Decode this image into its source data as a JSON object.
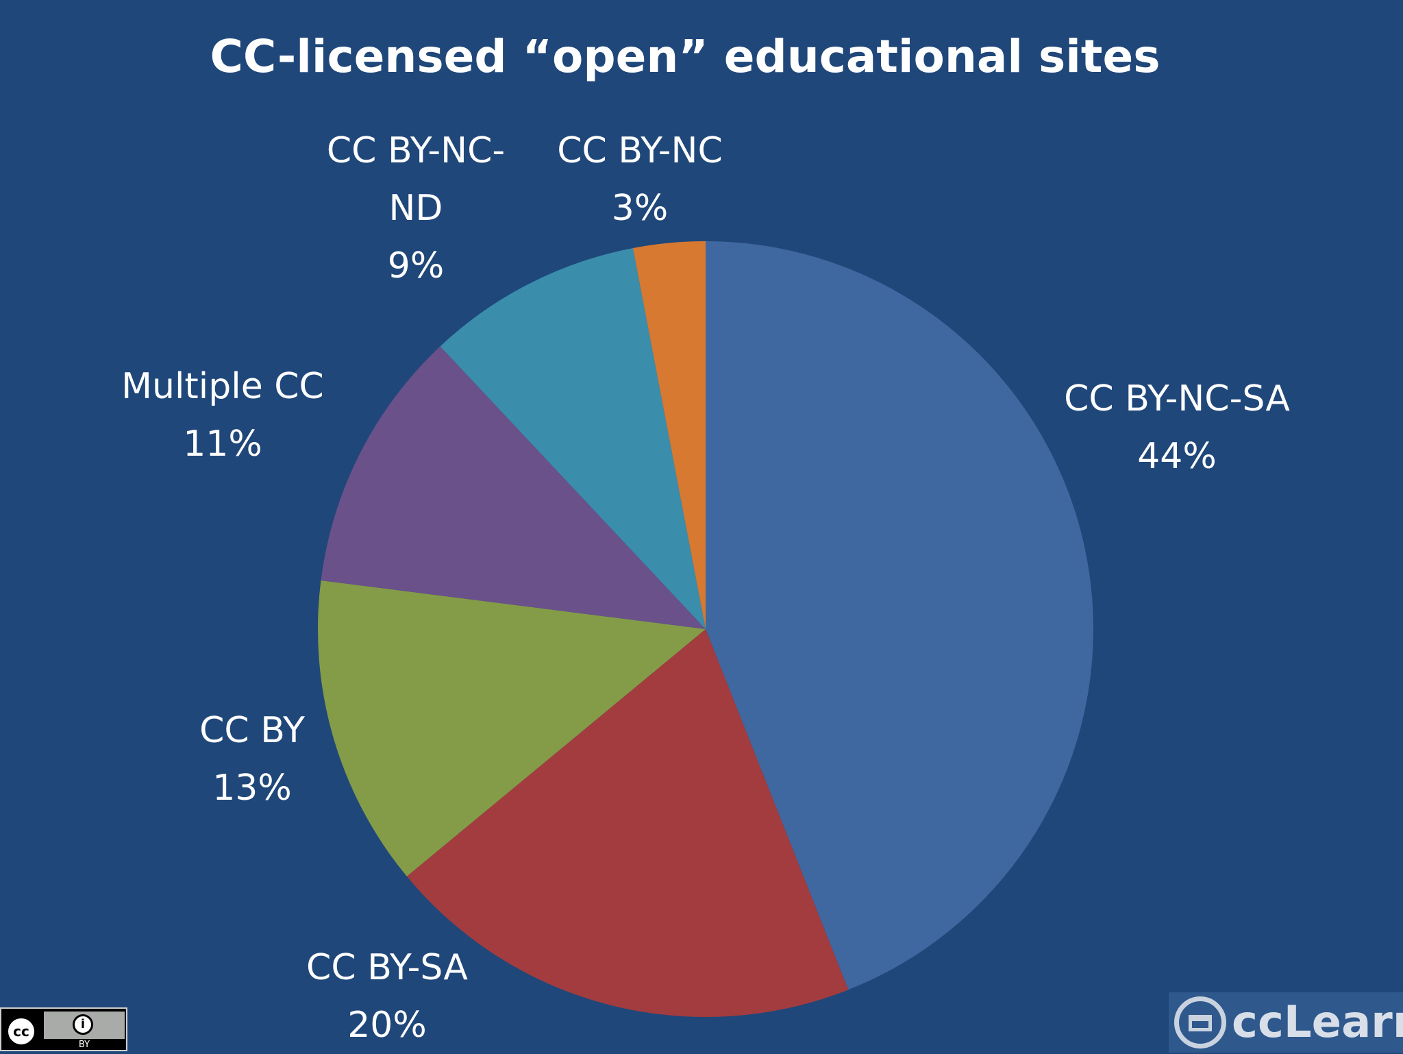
{
  "slide": {
    "title": "CC-licensed “open” educational sites",
    "background_color": "#20477a"
  },
  "chart_data": {
    "type": "pie",
    "title": "CC-licensed “open” educational sites",
    "start": "12 o'clock, clockwise",
    "slices": [
      {
        "name": "CC BY-NC-SA",
        "label_lines": [
          "CC BY-NC-SA",
          "44%"
        ],
        "value": 44,
        "color": "#3f67a0"
      },
      {
        "name": "CC BY-SA",
        "label_lines": [
          "CC BY-SA",
          "20%"
        ],
        "value": 20,
        "color": "#a23c3e"
      },
      {
        "name": "CC BY",
        "label_lines": [
          "CC BY",
          "13%"
        ],
        "value": 13,
        "color": "#849c48"
      },
      {
        "name": "Multiple CC",
        "label_lines": [
          "Multiple CC",
          "11%"
        ],
        "value": 11,
        "color": "#6a518a"
      },
      {
        "name": "CC BY-NC-ND",
        "label_lines": [
          "CC BY-NC-",
          "ND",
          "9%"
        ],
        "value": 9,
        "color": "#3a8dab"
      },
      {
        "name": "CC BY-NC",
        "label_lines": [
          "CC BY-NC",
          "3%"
        ],
        "value": 3,
        "color": "#d87932"
      }
    ]
  },
  "license_badge": {
    "icon": "cc-by-icon",
    "cc_text": "cc",
    "by_text": "BY"
  },
  "logo": {
    "icon": "cclearn-logo-icon",
    "text": "ccLearn"
  }
}
